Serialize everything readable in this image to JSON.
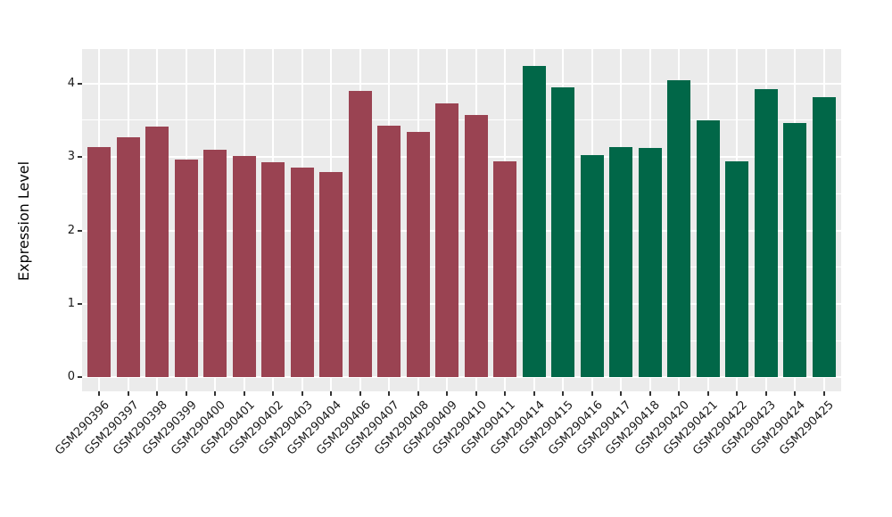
{
  "chart_data": {
    "type": "bar",
    "title": "",
    "xlabel": "",
    "ylabel": "Expression Level",
    "panel_background": "#EBEBEB",
    "grid_color": "#FFFFFF",
    "axis_text_color": "#1A1A1A",
    "tick_color": "#333333",
    "legend": "none",
    "grid": true,
    "x_label_rotation_deg": 45,
    "yticks": [
      0,
      1,
      2,
      3,
      4
    ],
    "yticks_minor": [
      0.5,
      1.5,
      2.5,
      3.5
    ],
    "ylim_display": [
      -0.19,
      4.47
    ],
    "group_colors": {
      "group1": "#9A4352",
      "group2": "#016748"
    },
    "bars": [
      {
        "label": "GSM290396",
        "value": 3.14,
        "group": "group1"
      },
      {
        "label": "GSM290397",
        "value": 3.27,
        "group": "group1"
      },
      {
        "label": "GSM290398",
        "value": 3.41,
        "group": "group1"
      },
      {
        "label": "GSM290399",
        "value": 2.97,
        "group": "group1"
      },
      {
        "label": "GSM290400",
        "value": 3.1,
        "group": "group1"
      },
      {
        "label": "GSM290401",
        "value": 3.01,
        "group": "group1"
      },
      {
        "label": "GSM290402",
        "value": 2.93,
        "group": "group1"
      },
      {
        "label": "GSM290403",
        "value": 2.85,
        "group": "group1"
      },
      {
        "label": "GSM290404",
        "value": 2.8,
        "group": "group1"
      },
      {
        "label": "GSM290406",
        "value": 3.9,
        "group": "group1"
      },
      {
        "label": "GSM290407",
        "value": 3.43,
        "group": "group1"
      },
      {
        "label": "GSM290408",
        "value": 3.34,
        "group": "group1"
      },
      {
        "label": "GSM290409",
        "value": 3.73,
        "group": "group1"
      },
      {
        "label": "GSM290410",
        "value": 3.57,
        "group": "group1"
      },
      {
        "label": "GSM290411",
        "value": 2.94,
        "group": "group1"
      },
      {
        "label": "GSM290414",
        "value": 4.24,
        "group": "group2"
      },
      {
        "label": "GSM290415",
        "value": 3.95,
        "group": "group2"
      },
      {
        "label": "GSM290416",
        "value": 3.03,
        "group": "group2"
      },
      {
        "label": "GSM290417",
        "value": 3.13,
        "group": "group2"
      },
      {
        "label": "GSM290418",
        "value": 3.12,
        "group": "group2"
      },
      {
        "label": "GSM290420",
        "value": 4.05,
        "group": "group2"
      },
      {
        "label": "GSM290421",
        "value": 3.5,
        "group": "group2"
      },
      {
        "label": "GSM290422",
        "value": 2.94,
        "group": "group2"
      },
      {
        "label": "GSM290423",
        "value": 3.92,
        "group": "group2"
      },
      {
        "label": "GSM290424",
        "value": 3.46,
        "group": "group2"
      },
      {
        "label": "GSM290425",
        "value": 3.82,
        "group": "group2"
      }
    ]
  }
}
